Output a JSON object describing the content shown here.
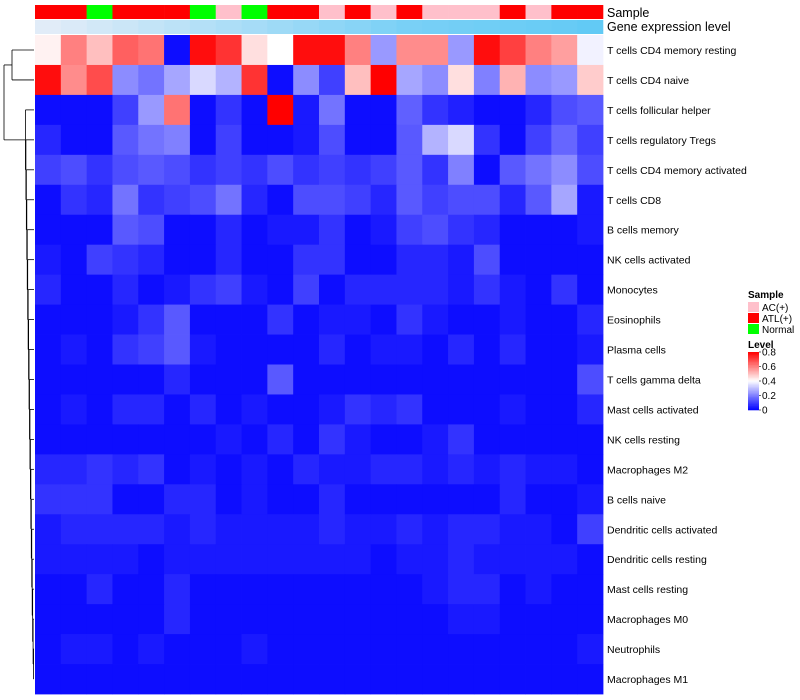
{
  "chart_data": {
    "type": "heatmap",
    "title": "",
    "annotation_tracks": {
      "sample_label": "Sample",
      "gene_label": "Gene expression level"
    },
    "sample_annotation": [
      "ATL(+)",
      "ATL(+)",
      "Normal",
      "ATL(+)",
      "ATL(+)",
      "ATL(+)",
      "Normal",
      "AC(+)",
      "Normal",
      "ATL(+)",
      "ATL(+)",
      "AC(+)",
      "ATL(+)",
      "AC(+)",
      "ATL(+)",
      "AC(+)",
      "AC(+)",
      "AC(+)",
      "ATL(+)",
      "AC(+)",
      "ATL(+)",
      "ATL(+)"
    ],
    "gene_expression_level": [
      0.1,
      0.15,
      0.2,
      0.25,
      0.3,
      0.35,
      0.4,
      0.45,
      0.5,
      0.55,
      0.6,
      0.65,
      0.7,
      0.75,
      0.8,
      0.82,
      0.84,
      0.86,
      0.88,
      0.9,
      0.92,
      0.95
    ],
    "rows": [
      "T cells CD4 memory resting",
      "T cells CD4 naive",
      "T cells follicular helper",
      "T cells regulatory  Tregs",
      "T cells CD4 memory activated",
      "T cells CD8",
      "B cells memory",
      "NK cells activated",
      "Monocytes",
      "Eosinophils",
      "Plasma cells",
      "T cells gamma delta",
      "Mast cells activated",
      "NK cells resting",
      "Macrophages M2",
      "B cells naive",
      "Dendritic cells activated",
      "Dendritic cells resting",
      "Mast cells resting",
      "Macrophages M0",
      "Neutrophils",
      "Macrophages M1"
    ],
    "values": [
      [
        0.42,
        0.6,
        0.5,
        0.65,
        0.62,
        0.02,
        0.78,
        0.72,
        0.45,
        0.4,
        0.78,
        0.78,
        0.6,
        0.24,
        0.58,
        0.58,
        0.24,
        0.78,
        0.7,
        0.6,
        0.55,
        0.38
      ],
      [
        0.78,
        0.58,
        0.68,
        0.22,
        0.18,
        0.26,
        0.34,
        0.28,
        0.72,
        0.02,
        0.22,
        0.1,
        0.5,
        0.8,
        0.26,
        0.22,
        0.45,
        0.2,
        0.52,
        0.22,
        0.24,
        0.48
      ],
      [
        0.02,
        0.02,
        0.02,
        0.1,
        0.24,
        0.62,
        0.02,
        0.08,
        0.02,
        0.8,
        0.04,
        0.18,
        0.02,
        0.02,
        0.15,
        0.08,
        0.05,
        0.02,
        0.02,
        0.06,
        0.12,
        0.14
      ],
      [
        0.06,
        0.02,
        0.02,
        0.14,
        0.18,
        0.2,
        0.02,
        0.1,
        0.02,
        0.02,
        0.04,
        0.12,
        0.02,
        0.02,
        0.14,
        0.28,
        0.34,
        0.08,
        0.02,
        0.1,
        0.16,
        0.1
      ],
      [
        0.1,
        0.12,
        0.08,
        0.12,
        0.14,
        0.12,
        0.08,
        0.1,
        0.08,
        0.12,
        0.08,
        0.1,
        0.08,
        0.1,
        0.14,
        0.08,
        0.2,
        0.02,
        0.14,
        0.18,
        0.22,
        0.12
      ],
      [
        0.02,
        0.08,
        0.06,
        0.18,
        0.08,
        0.1,
        0.12,
        0.18,
        0.06,
        0.02,
        0.12,
        0.12,
        0.1,
        0.06,
        0.14,
        0.1,
        0.12,
        0.12,
        0.06,
        0.14,
        0.26,
        0.04
      ],
      [
        0.02,
        0.02,
        0.02,
        0.14,
        0.12,
        0.02,
        0.02,
        0.06,
        0.02,
        0.04,
        0.04,
        0.08,
        0.02,
        0.04,
        0.1,
        0.12,
        0.08,
        0.06,
        0.02,
        0.02,
        0.02,
        0.04
      ],
      [
        0.04,
        0.02,
        0.1,
        0.08,
        0.06,
        0.02,
        0.02,
        0.06,
        0.02,
        0.02,
        0.08,
        0.08,
        0.02,
        0.02,
        0.06,
        0.06,
        0.04,
        0.12,
        0.02,
        0.02,
        0.02,
        0.02
      ],
      [
        0.06,
        0.02,
        0.02,
        0.06,
        0.02,
        0.04,
        0.08,
        0.1,
        0.04,
        0.02,
        0.1,
        0.02,
        0.06,
        0.06,
        0.06,
        0.06,
        0.04,
        0.08,
        0.04,
        0.02,
        0.08,
        0.02
      ],
      [
        0.02,
        0.02,
        0.02,
        0.04,
        0.08,
        0.14,
        0.02,
        0.02,
        0.02,
        0.08,
        0.02,
        0.04,
        0.04,
        0.02,
        0.08,
        0.04,
        0.02,
        0.02,
        0.04,
        0.02,
        0.02,
        0.06
      ],
      [
        0.02,
        0.04,
        0.02,
        0.08,
        0.1,
        0.14,
        0.04,
        0.02,
        0.02,
        0.02,
        0.02,
        0.06,
        0.02,
        0.04,
        0.04,
        0.02,
        0.06,
        0.02,
        0.06,
        0.02,
        0.02,
        0.04
      ],
      [
        0.02,
        0.02,
        0.02,
        0.02,
        0.02,
        0.06,
        0.02,
        0.02,
        0.02,
        0.14,
        0.02,
        0.02,
        0.02,
        0.02,
        0.02,
        0.02,
        0.02,
        0.02,
        0.02,
        0.02,
        0.02,
        0.12
      ],
      [
        0.02,
        0.04,
        0.02,
        0.06,
        0.06,
        0.02,
        0.06,
        0.02,
        0.04,
        0.02,
        0.02,
        0.04,
        0.08,
        0.06,
        0.08,
        0.02,
        0.02,
        0.02,
        0.04,
        0.02,
        0.02,
        0.06
      ],
      [
        0.02,
        0.02,
        0.02,
        0.02,
        0.02,
        0.02,
        0.02,
        0.04,
        0.02,
        0.06,
        0.02,
        0.08,
        0.04,
        0.02,
        0.02,
        0.04,
        0.08,
        0.02,
        0.02,
        0.02,
        0.02,
        0.02
      ],
      [
        0.06,
        0.06,
        0.08,
        0.06,
        0.08,
        0.02,
        0.04,
        0.02,
        0.04,
        0.02,
        0.06,
        0.04,
        0.04,
        0.06,
        0.06,
        0.04,
        0.06,
        0.04,
        0.06,
        0.04,
        0.04,
        0.02
      ],
      [
        0.08,
        0.08,
        0.08,
        0.02,
        0.02,
        0.06,
        0.06,
        0.02,
        0.04,
        0.02,
        0.02,
        0.06,
        0.02,
        0.02,
        0.02,
        0.02,
        0.02,
        0.02,
        0.06,
        0.02,
        0.02,
        0.04
      ],
      [
        0.04,
        0.06,
        0.06,
        0.06,
        0.06,
        0.04,
        0.06,
        0.04,
        0.04,
        0.04,
        0.04,
        0.06,
        0.04,
        0.04,
        0.06,
        0.04,
        0.06,
        0.06,
        0.04,
        0.04,
        0.02,
        0.1
      ],
      [
        0.04,
        0.04,
        0.04,
        0.04,
        0.02,
        0.04,
        0.04,
        0.04,
        0.04,
        0.04,
        0.04,
        0.04,
        0.04,
        0.02,
        0.04,
        0.04,
        0.06,
        0.04,
        0.04,
        0.04,
        0.04,
        0.02
      ],
      [
        0.02,
        0.02,
        0.06,
        0.02,
        0.02,
        0.06,
        0.02,
        0.02,
        0.02,
        0.02,
        0.02,
        0.02,
        0.02,
        0.02,
        0.02,
        0.04,
        0.06,
        0.06,
        0.02,
        0.04,
        0.02,
        0.02
      ],
      [
        0.02,
        0.02,
        0.02,
        0.02,
        0.02,
        0.06,
        0.02,
        0.02,
        0.02,
        0.02,
        0.02,
        0.02,
        0.02,
        0.02,
        0.02,
        0.02,
        0.04,
        0.04,
        0.02,
        0.02,
        0.02,
        0.02
      ],
      [
        0.02,
        0.04,
        0.04,
        0.02,
        0.04,
        0.02,
        0.02,
        0.02,
        0.04,
        0.02,
        0.02,
        0.02,
        0.02,
        0.02,
        0.02,
        0.02,
        0.02,
        0.02,
        0.02,
        0.02,
        0.02,
        0.04
      ],
      [
        0.02,
        0.02,
        0.02,
        0.02,
        0.02,
        0.02,
        0.02,
        0.02,
        0.02,
        0.02,
        0.02,
        0.02,
        0.02,
        0.02,
        0.02,
        0.02,
        0.02,
        0.02,
        0.02,
        0.02,
        0.02,
        0.02
      ]
    ],
    "value_range": [
      0,
      0.8
    ],
    "color_scale": {
      "low": "#0000ff",
      "mid": "#ffffff",
      "high": "#ff0000",
      "mid_value": 0.4
    },
    "legend": {
      "sample_title": "Sample",
      "sample_items": [
        {
          "label": "AC(+)",
          "color": "#ffc0cb"
        },
        {
          "label": "ATL(+)",
          "color": "#ff0000"
        },
        {
          "label": "Normal",
          "color": "#00ff00"
        }
      ],
      "level_title": "Level",
      "level_ticks": [
        0.8,
        0.6,
        0.4,
        0.2,
        0
      ],
      "position": "right"
    },
    "gene_expression_colors": {
      "low": "#f0f0f8",
      "high": "#5bc8f5"
    }
  }
}
